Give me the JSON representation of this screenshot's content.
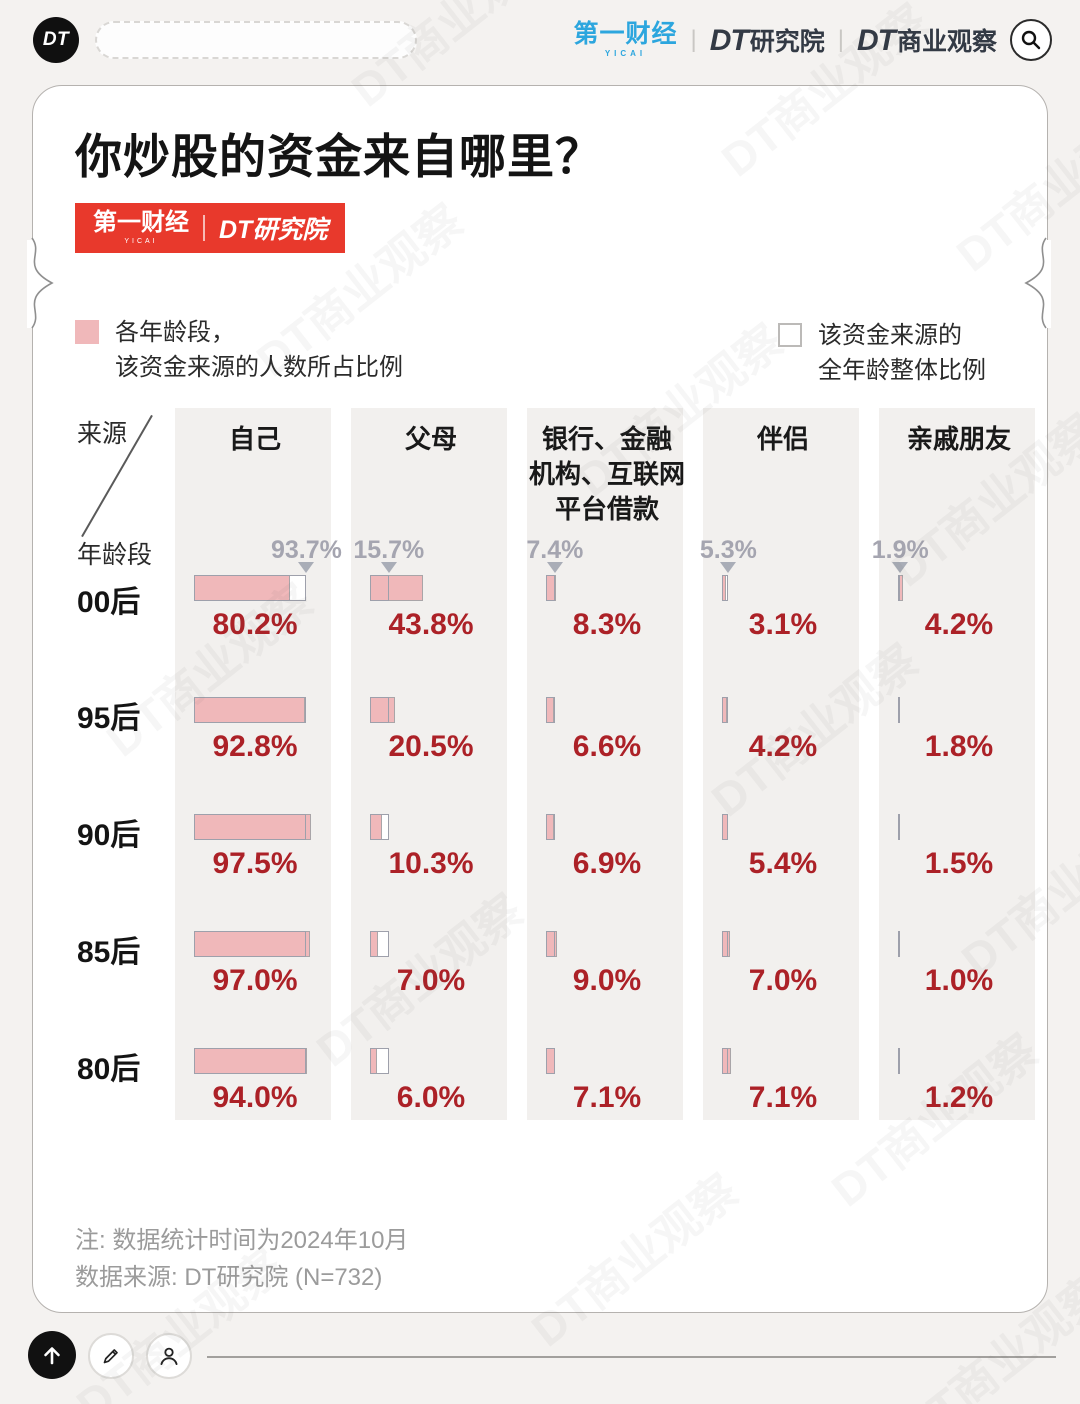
{
  "topbar": {
    "logo": "DT",
    "search_placeholder": "",
    "brands": {
      "yicai": "第一财经",
      "yicai_sub": "YICAI",
      "dt": "DT",
      "research": "研究院",
      "business": "商业观察"
    }
  },
  "header": {
    "title": "你炒股的资金来自哪里？",
    "badge": {
      "yicai": "第一财经",
      "yicai_sub": "YICAI",
      "dt_research": "DT研究院"
    }
  },
  "legend": {
    "group_line1": "各年龄段，",
    "group_line2": "该资金来源的人数所占比例",
    "overall_line1": "该资金来源的",
    "overall_line2": "全年龄整体比例"
  },
  "chart_data": {
    "type": "bar",
    "title": "你炒股的资金来自哪里？",
    "corner_source_label": "来源",
    "corner_age_label": "年龄段",
    "columns": [
      "自己",
      "父母",
      "银行、金融\n机构、互联网\n平台借款",
      "伴侣",
      "亲戚朋友"
    ],
    "unit": "%",
    "overall_series": {
      "name": "该资金来源的全年龄整体比例",
      "values": [
        93.7,
        15.7,
        7.4,
        5.3,
        1.9
      ]
    },
    "rows": [
      {
        "label": "00后",
        "values": [
          80.2,
          43.8,
          8.3,
          3.1,
          4.2
        ]
      },
      {
        "label": "95后",
        "values": [
          92.8,
          20.5,
          6.6,
          4.2,
          1.8
        ]
      },
      {
        "label": "90后",
        "values": [
          97.5,
          10.3,
          6.9,
          5.4,
          1.5
        ]
      },
      {
        "label": "85后",
        "values": [
          97.0,
          7.0,
          9.0,
          7.0,
          1.0
        ]
      },
      {
        "label": "80后",
        "values": [
          94.0,
          6.0,
          7.1,
          7.1,
          1.2
        ]
      }
    ],
    "xlim": [
      0,
      100
    ],
    "legend_position": "top",
    "colors": {
      "bar_fill": "#f0b8ba",
      "bar_border": "#a9a5a8",
      "obox_border": "#9ea0ab",
      "value_text": "#ac2127",
      "overall_text": "#a5a5b0",
      "band": "#f2f0ee",
      "accent_red": "#e8392c",
      "yicai_blue": "#2ca6de"
    }
  },
  "notes": {
    "line1": "注: 数据统计时间为2024年10月",
    "line2": "数据来源: DT研究院 (N=732)"
  },
  "watermark": "DT商业观察"
}
